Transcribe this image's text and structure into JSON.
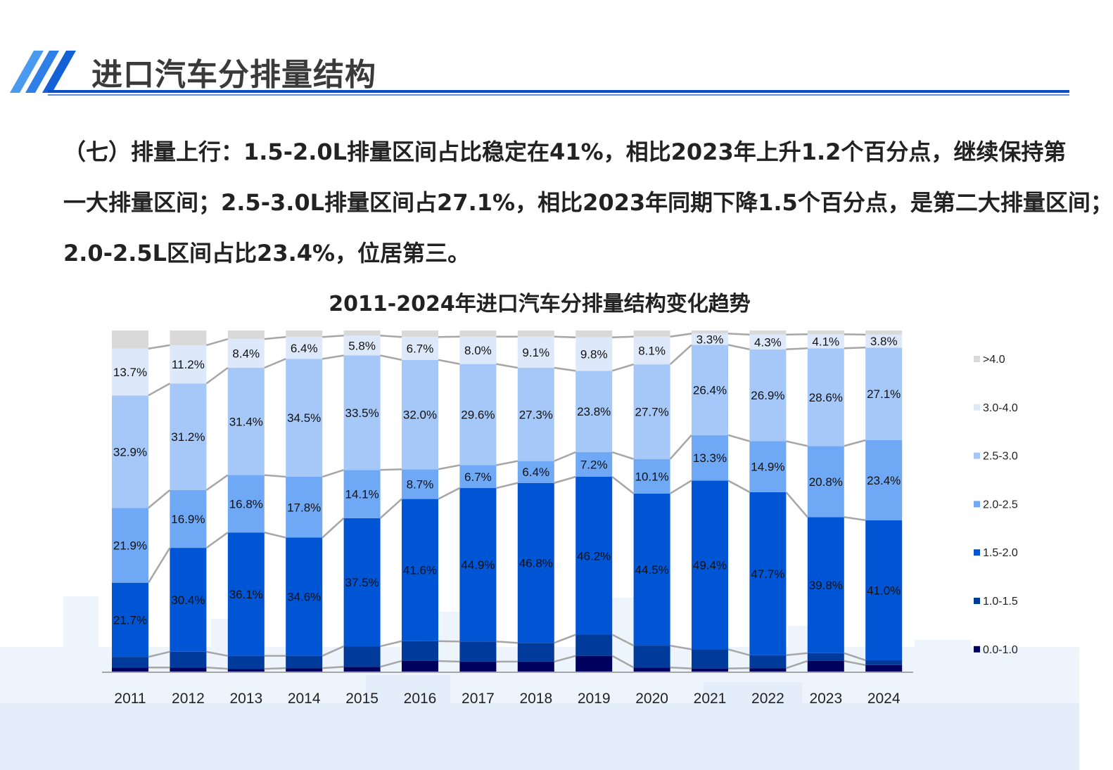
{
  "header": {
    "title": "进口汽车分排量结构",
    "accent_color": "#0a4fc4"
  },
  "paragraph": {
    "lines": [
      "（七）排量上行：1.5-2.0L排量区间占比稳定在41%，相比2023年上升1.2个百分点，继续保持第",
      "一大排量区间；2.5-3.0L排量区间占27.1%，相比2023年同期下降1.5个百分点，是第二大排量区间；",
      "2.0-2.5L区间占比23.4%，位居第三。"
    ]
  },
  "chart_data": {
    "type": "bar",
    "stacked": true,
    "normalized": true,
    "title": "2011-2024年进口汽车分排量结构变化趋势",
    "categories": [
      "2011",
      "2012",
      "2013",
      "2014",
      "2015",
      "2016",
      "2017",
      "2018",
      "2019",
      "2020",
      "2021",
      "2022",
      "2023",
      "2024"
    ],
    "ylim": [
      0,
      100
    ],
    "grid": false,
    "legend_placement": "right",
    "series_lines": true,
    "series": [
      {
        "name": "0.0-1.0",
        "color": "#00005e",
        "values": [
          1.4,
          1.4,
          1.0,
          1.2,
          1.6,
          3.3,
          3.1,
          3.1,
          4.8,
          1.4,
          1.1,
          1.2,
          3.3,
          2.1
        ],
        "labeled": false
      },
      {
        "name": "1.0-1.5",
        "color": "#003a9a",
        "values": [
          3.1,
          4.6,
          3.8,
          3.6,
          6.0,
          5.8,
          5.9,
          5.5,
          6.2,
          6.4,
          5.6,
          3.8,
          2.3,
          1.4
        ],
        "labeled": false
      },
      {
        "name": "1.5-2.0",
        "color": "#0055d4",
        "values": [
          21.7,
          30.4,
          36.1,
          34.6,
          37.5,
          41.6,
          44.9,
          46.8,
          46.2,
          44.5,
          49.4,
          47.7,
          39.8,
          41.0
        ],
        "labeled": true
      },
      {
        "name": "2.0-2.5",
        "color": "#6fa8f5",
        "values": [
          21.9,
          16.9,
          16.8,
          17.8,
          14.1,
          8.7,
          6.7,
          6.4,
          7.2,
          10.1,
          13.3,
          14.9,
          20.8,
          23.4
        ],
        "labeled": true
      },
      {
        "name": "2.5-3.0",
        "color": "#a6c8f8",
        "values": [
          32.9,
          31.2,
          31.4,
          34.5,
          33.5,
          32.0,
          29.6,
          27.3,
          23.8,
          27.7,
          26.4,
          26.9,
          28.6,
          27.1
        ],
        "labeled": true
      },
      {
        "name": "3.0-4.0",
        "color": "#dde9fb",
        "values": [
          13.7,
          11.2,
          8.4,
          6.4,
          5.8,
          6.7,
          8.0,
          9.1,
          9.8,
          8.1,
          3.3,
          4.3,
          4.1,
          3.8
        ],
        "labeled": true
      },
      {
        "name": ">4.0",
        "color": "#d9d9d9",
        "values": [
          5.3,
          4.3,
          2.5,
          1.9,
          1.5,
          1.9,
          1.8,
          1.8,
          2.0,
          1.8,
          0.9,
          1.2,
          1.1,
          1.2
        ],
        "labeled": false
      }
    ],
    "legend_order": [
      ">4.0",
      "3.0-4.0",
      "2.5-3.0",
      "2.0-2.5",
      "1.5-2.0",
      "1.0-1.5",
      "0.0-1.0"
    ]
  }
}
